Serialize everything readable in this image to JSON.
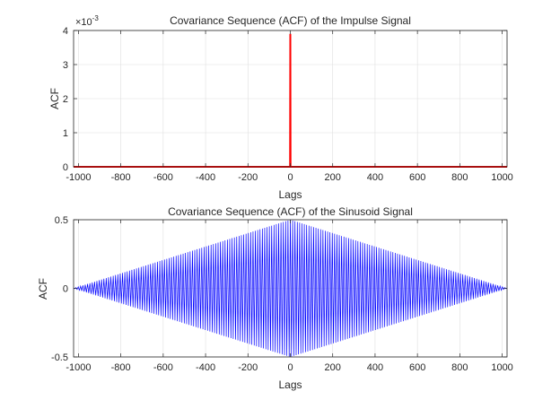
{
  "chart_data": [
    {
      "type": "line",
      "title": "Covariance Sequence (ACF) of the Impulse Signal",
      "xlabel": "Lags",
      "ylabel": "ACF",
      "exponent_label": "×10",
      "exponent_power": "-3",
      "xlim": [
        -1023,
        1023
      ],
      "ylim": [
        0,
        4
      ],
      "xticks": [
        -1000,
        -800,
        -600,
        -400,
        -200,
        0,
        200,
        400,
        600,
        800,
        1000
      ],
      "xtick_labels": [
        "-1000",
        "-800",
        "-600",
        "-400",
        "-200",
        "0",
        "200",
        "400",
        "600",
        "800",
        "1000"
      ],
      "yticks": [
        0,
        1,
        2,
        3,
        4
      ],
      "ytick_labels": [
        "0",
        "1",
        "2",
        "3",
        "4"
      ],
      "grid": true,
      "series": [
        {
          "color": "#ff0000",
          "x": [
            -1023,
            -1,
            0,
            1,
            1023
          ],
          "y": [
            0,
            0,
            3.9,
            0,
            0
          ]
        }
      ]
    },
    {
      "type": "line",
      "title": "Covariance Sequence (ACF) of the Sinusoid Signal",
      "xlabel": "Lags",
      "ylabel": "ACF",
      "xlim": [
        -1023,
        1023
      ],
      "ylim": [
        -0.5,
        0.5
      ],
      "xticks": [
        -1000,
        -800,
        -600,
        -400,
        -200,
        0,
        200,
        400,
        600,
        800,
        1000
      ],
      "xtick_labels": [
        "-1000",
        "-800",
        "-600",
        "-400",
        "-200",
        "0",
        "200",
        "400",
        "600",
        "800",
        "1000"
      ],
      "yticks": [
        -0.5,
        0,
        0.5
      ],
      "ytick_labels": [
        "-0.5",
        "0",
        "0.5"
      ],
      "grid": true,
      "series": [
        {
          "color": "#0000ff",
          "function": "triangular-envelope oscillation",
          "peak_value": 0.5,
          "lag_range": [
            -1023,
            1023
          ]
        }
      ]
    }
  ]
}
